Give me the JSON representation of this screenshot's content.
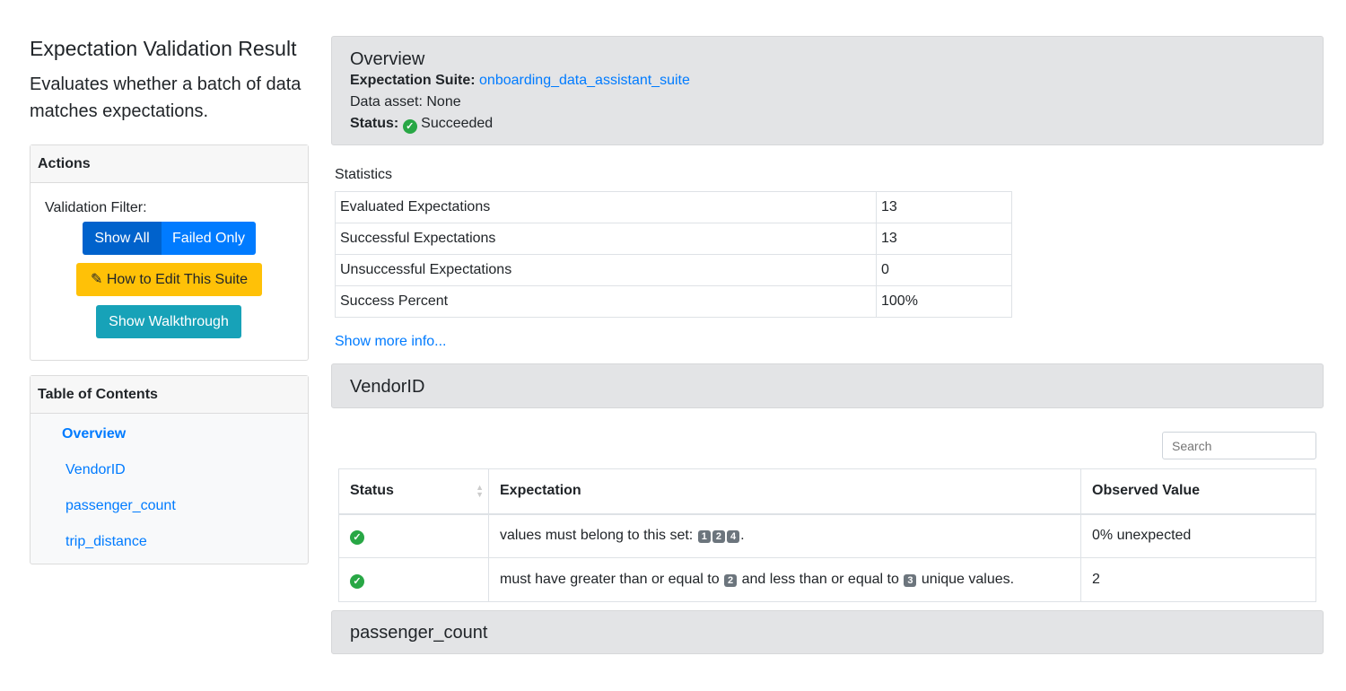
{
  "sidebar": {
    "title": "Expectation Validation Result",
    "description": "Evaluates whether a batch of data matches expectations.",
    "actions": {
      "header": "Actions",
      "filter_label": "Validation Filter:",
      "show_all": "Show All",
      "failed_only": "Failed Only",
      "edit_suite": "How to Edit This Suite",
      "walkthrough": "Show Walkthrough"
    },
    "toc": {
      "header": "Table of Contents",
      "items": [
        "Overview",
        "VendorID",
        "passenger_count",
        "trip_distance"
      ]
    }
  },
  "overview": {
    "title": "Overview",
    "suite_label": "Expectation Suite:",
    "suite_name": "onboarding_data_assistant_suite",
    "data_asset": "Data asset: None",
    "status_label": "Status:",
    "status_value": "Succeeded"
  },
  "statistics": {
    "title": "Statistics",
    "rows": [
      [
        "Evaluated Expectations",
        "13"
      ],
      [
        "Successful Expectations",
        "13"
      ],
      [
        "Unsuccessful Expectations",
        "0"
      ],
      [
        "Success Percent",
        "100%"
      ]
    ],
    "show_more": "Show more info..."
  },
  "sections": [
    {
      "title": "VendorID",
      "search_placeholder": "Search",
      "headers": [
        "Status",
        "Expectation",
        "Observed Value"
      ],
      "rows": [
        {
          "status": "success",
          "pre": "values must belong to this set:",
          "badges": [
            "1",
            "2",
            "4"
          ],
          "post": ".",
          "observed": "0% unexpected"
        },
        {
          "status": "success",
          "a": "must have greater than or equal to",
          "b1": "2",
          "b": "and less than or equal to",
          "b2": "3",
          "c": "unique values.",
          "observed": "2"
        }
      ]
    },
    {
      "title": "passenger_count"
    }
  ],
  "colors": {
    "primary": "#007bff",
    "warning": "#ffc107",
    "info": "#17a2b8",
    "success": "#28a745"
  }
}
